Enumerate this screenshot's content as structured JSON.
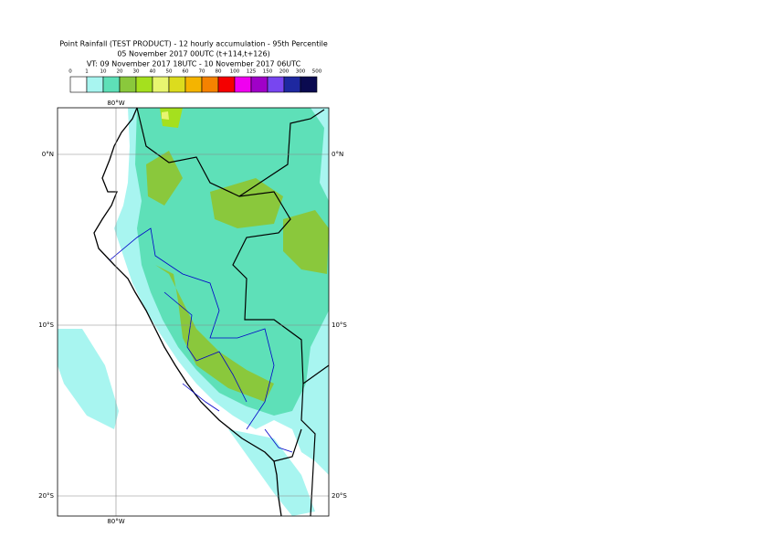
{
  "header": {
    "lines": [
      "Point Rainfall (TEST PRODUCT) - 12 hourly accumulation - 95th Percentile",
      "05 November 2017 00UTC (t+114,t+126)",
      "VT: 09 November 2017 18UTC - 10 November 2017 06UTC"
    ]
  },
  "legend": {
    "labels": [
      "0",
      "1",
      "10",
      "20",
      "30",
      "40",
      "50",
      "60",
      "70",
      "80",
      "100",
      "125",
      "150",
      "200",
      "300",
      "500"
    ],
    "colors": [
      "#ffffff",
      "#a8f5f0",
      "#5ee0b8",
      "#8ac83c",
      "#a5e01e",
      "#e8f570",
      "#dcdc1e",
      "#f5b400",
      "#f58200",
      "#f50000",
      "#f000f0",
      "#a000c8",
      "#7846f0",
      "#1e28a0",
      "#0a0a50"
    ]
  },
  "map": {
    "top_label": "80°W",
    "bottom_label": "80°W",
    "left_labels": [
      "0°N",
      "10°S",
      "20°S"
    ],
    "right_labels": [
      "0°N",
      "10°S",
      "20°S"
    ]
  }
}
